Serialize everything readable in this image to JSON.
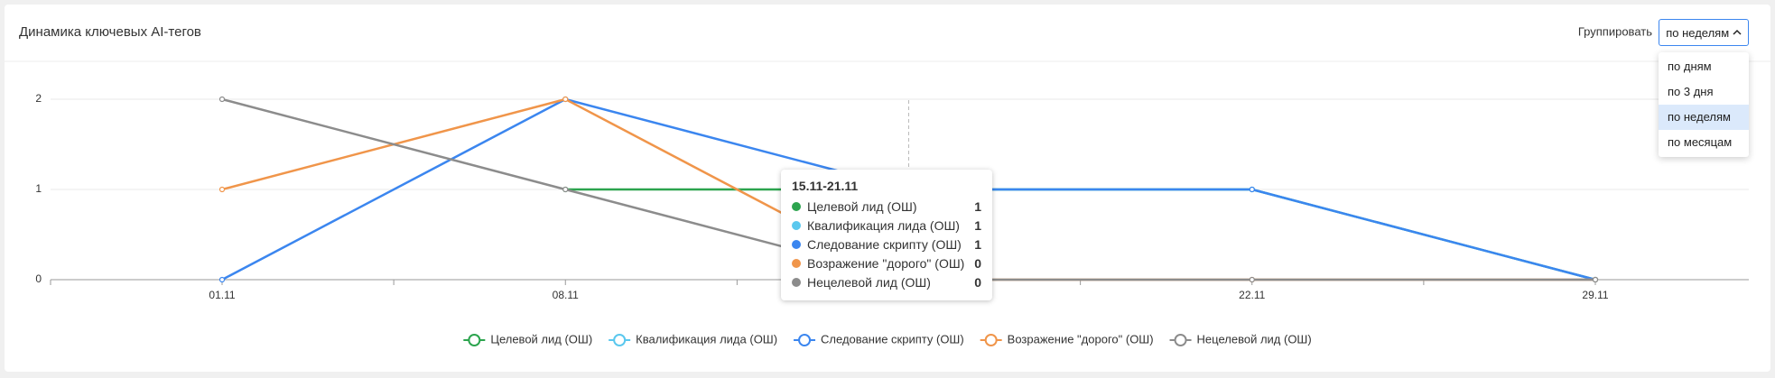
{
  "chart_data": {
    "type": "line",
    "title": "Динамика ключевых AI-тегов",
    "categories": [
      "01.11",
      "08.11",
      null,
      "22.11",
      "29.11"
    ],
    "ylim": [
      0,
      2
    ],
    "yticks": [
      0,
      1,
      2
    ],
    "grid": true,
    "series": [
      {
        "name": "Целевой лид (ОШ)",
        "color": "#2ca44e",
        "values": [
          null,
          1,
          1,
          1,
          0
        ]
      },
      {
        "name": "Квалификация лида (ОШ)",
        "color": "#5bc8ee",
        "values": [
          null,
          null,
          1,
          1,
          0
        ]
      },
      {
        "name": "Следование скрипту (ОШ)",
        "color": "#3b86ef",
        "values": [
          0,
          2,
          1,
          1,
          0
        ]
      },
      {
        "name": "Возражение \"дорого\" (ОШ)",
        "color": "#f0954a",
        "values": [
          1,
          2,
          0,
          0,
          0
        ]
      },
      {
        "name": "Нецелевой лид (ОШ)",
        "color": "#8c8c8c",
        "values": [
          2,
          1,
          0,
          0,
          0
        ]
      }
    ],
    "tooltip": {
      "title": "15.11-21.11",
      "index": 2
    }
  },
  "ui": {
    "group_label": "Группировать",
    "selected": "по неделям",
    "options": [
      "по дням",
      "по 3 дня",
      "по неделям",
      "по месяцам"
    ],
    "selected_index": 2
  }
}
